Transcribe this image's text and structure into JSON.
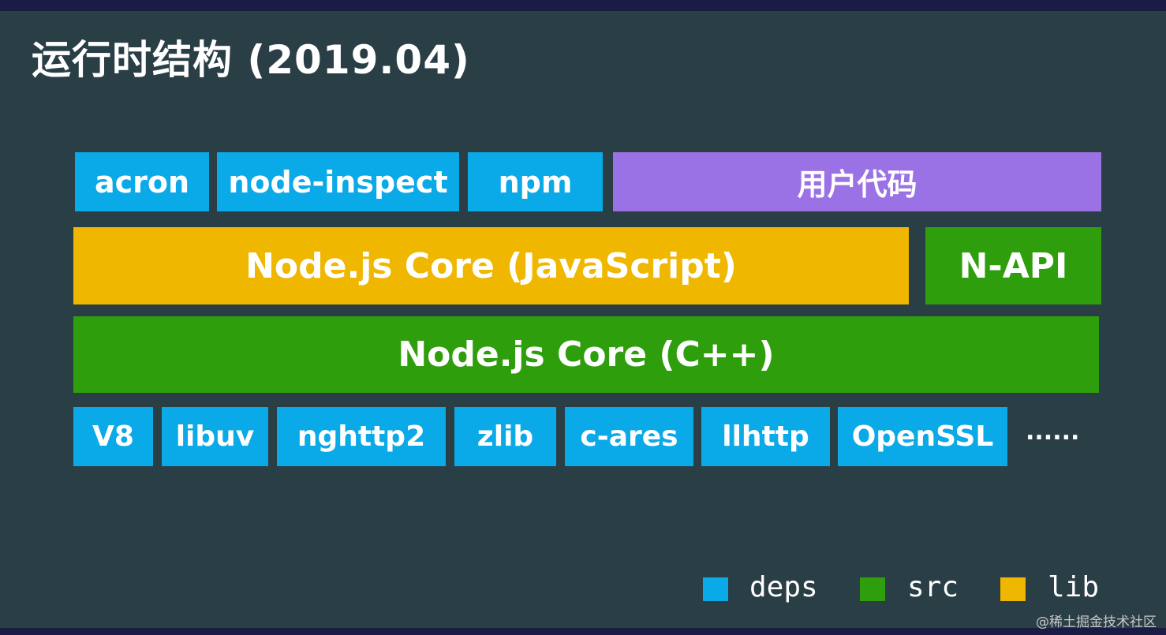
{
  "title": "运行时结构 (2019.04)",
  "rows": [
    [
      "acron",
      "node-inspect",
      "npm",
      "用户代码"
    ],
    [
      "Node.js Core (JavaScript)",
      "N-API"
    ],
    [
      "Node.js Core (C++)"
    ],
    [
      "V8",
      "libuv",
      "nghttp2",
      "zlib",
      "c-ares",
      "llhttp",
      "OpenSSL"
    ]
  ],
  "ellipsis": "......",
  "legend": [
    "deps",
    "src",
    "lib"
  ],
  "watermark": "@稀土掘金技术社区"
}
